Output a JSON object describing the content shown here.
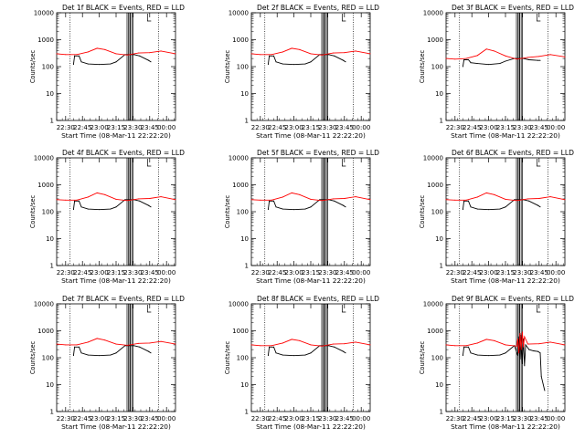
{
  "figure": {
    "type": "hessi-detector-lightcurves",
    "xlabel": "Start Time (08-Mar-11 22:22:20)",
    "ylabel": "Counts/sec",
    "x_tick_labels": [
      "22:30",
      "22:45",
      "23:00",
      "23:15",
      "23:30",
      "23:45",
      "00:00"
    ],
    "y_tick_labels": [
      "1",
      "10",
      "100",
      "1000",
      "10000"
    ],
    "colors": {
      "events": "#000000",
      "lld": "#ff0000",
      "axes": "#000000",
      "background": "#ffffff"
    }
  },
  "chart_data": [
    {
      "type": "line",
      "title": "Det 1f BLACK = Events, RED = LLD",
      "xlabel": "Start Time (08-Mar-11 22:22:20)",
      "ylabel": "Counts/sec",
      "yscale": "log",
      "ylim": [
        1,
        10000
      ],
      "xlim": [
        "22:22",
        "00:08"
      ],
      "series": [
        {
          "name": "Events",
          "color": "#000000",
          "x": [
            "22:37",
            "22:38",
            "22:42",
            "22:44",
            "22:50",
            "23:00",
            "23:10",
            "23:15",
            "23:23",
            "23:29",
            "23:31",
            "23:36",
            "23:44",
            "23:46"
          ],
          "values": [
            120,
            250,
            250,
            150,
            125,
            120,
            125,
            150,
            280,
            280,
            280,
            250,
            170,
            150
          ]
        },
        {
          "name": "LLD",
          "color": "#ff0000",
          "x": [
            "22:22",
            "22:30",
            "22:40",
            "22:50",
            "22:58",
            "23:05",
            "23:15",
            "23:25",
            "23:35",
            "23:45",
            "23:55",
            "00:08"
          ],
          "values": [
            300,
            280,
            280,
            350,
            480,
            430,
            300,
            270,
            320,
            330,
            380,
            300
          ]
        }
      ],
      "markers": [
        {
          "type": "night-boundary",
          "x": [
            "22:34",
            "23:53"
          ]
        },
        {
          "type": "saa-boundary",
          "x": [
            "23:26",
            "23:29"
          ]
        }
      ]
    },
    {
      "type": "line",
      "title": "Det 2f BLACK = Events, RED = LLD",
      "xlabel": "Start Time (08-Mar-11 22:22:20)",
      "ylabel": "Counts/sec",
      "yscale": "log",
      "ylim": [
        1,
        10000
      ],
      "xlim": [
        "22:22",
        "00:08"
      ],
      "series": [
        {
          "name": "Events",
          "color": "#000000",
          "x": [
            "22:37",
            "22:38",
            "22:42",
            "22:44",
            "22:50",
            "23:00",
            "23:10",
            "23:15",
            "23:23",
            "23:29",
            "23:31",
            "23:36",
            "23:44",
            "23:46"
          ],
          "values": [
            120,
            250,
            250,
            150,
            125,
            120,
            125,
            150,
            280,
            280,
            280,
            250,
            170,
            150
          ]
        },
        {
          "name": "LLD",
          "color": "#ff0000",
          "x": [
            "22:22",
            "22:30",
            "22:40",
            "22:50",
            "22:58",
            "23:05",
            "23:15",
            "23:25",
            "23:35",
            "23:45",
            "23:55",
            "00:08"
          ],
          "values": [
            300,
            280,
            280,
            350,
            480,
            430,
            300,
            270,
            320,
            330,
            380,
            300
          ]
        }
      ],
      "markers": [
        {
          "type": "night-boundary",
          "x": [
            "22:34",
            "23:53"
          ]
        },
        {
          "type": "saa-boundary",
          "x": [
            "23:26",
            "23:29"
          ]
        }
      ]
    },
    {
      "type": "line",
      "title": "Det 3f BLACK = Events, RED = LLD",
      "xlabel": "Start Time (08-Mar-11 22:22:20)",
      "ylabel": "Counts/sec",
      "yscale": "log",
      "ylim": [
        1,
        10000
      ],
      "xlim": [
        "22:22",
        "00:08"
      ],
      "series": [
        {
          "name": "Events",
          "color": "#000000",
          "x": [
            "22:37",
            "22:38",
            "22:42",
            "22:44",
            "22:50",
            "23:00",
            "23:10",
            "23:15",
            "23:23",
            "23:29",
            "23:31",
            "23:36",
            "23:44",
            "23:46"
          ],
          "values": [
            100,
            180,
            180,
            140,
            130,
            120,
            130,
            160,
            200,
            200,
            200,
            180,
            170,
            170
          ]
        },
        {
          "name": "LLD",
          "color": "#ff0000",
          "x": [
            "22:22",
            "22:30",
            "22:40",
            "22:50",
            "22:58",
            "23:05",
            "23:15",
            "23:25",
            "23:35",
            "23:45",
            "23:55",
            "00:08"
          ],
          "values": [
            200,
            190,
            200,
            260,
            450,
            380,
            250,
            190,
            220,
            240,
            280,
            230
          ]
        }
      ],
      "markers": [
        {
          "type": "night-boundary",
          "x": [
            "22:34",
            "23:53"
          ]
        },
        {
          "type": "saa-boundary",
          "x": [
            "23:26",
            "23:29"
          ]
        }
      ]
    },
    {
      "type": "line",
      "title": "Det 4f BLACK = Events, RED = LLD",
      "xlabel": "Start Time (08-Mar-11 22:22:20)",
      "ylabel": "Counts/sec",
      "yscale": "log",
      "ylim": [
        1,
        10000
      ],
      "xlim": [
        "22:22",
        "00:08"
      ],
      "series": [
        {
          "name": "Events",
          "color": "#000000",
          "x": [
            "22:37",
            "22:38",
            "22:42",
            "22:44",
            "22:50",
            "23:00",
            "23:10",
            "23:15",
            "23:23",
            "23:29",
            "23:31",
            "23:36",
            "23:44",
            "23:46"
          ],
          "values": [
            120,
            250,
            250,
            150,
            125,
            120,
            125,
            150,
            280,
            280,
            280,
            250,
            170,
            150
          ]
        },
        {
          "name": "LLD",
          "color": "#ff0000",
          "x": [
            "22:22",
            "22:30",
            "22:40",
            "22:50",
            "22:58",
            "23:05",
            "23:15",
            "23:25",
            "23:35",
            "23:45",
            "23:55",
            "00:08"
          ],
          "values": [
            280,
            270,
            270,
            350,
            500,
            430,
            290,
            260,
            300,
            310,
            360,
            280
          ]
        }
      ],
      "markers": [
        {
          "type": "night-boundary",
          "x": [
            "22:34",
            "23:53"
          ]
        },
        {
          "type": "saa-boundary",
          "x": [
            "23:26",
            "23:29"
          ]
        }
      ]
    },
    {
      "type": "line",
      "title": "Det 5f BLACK = Events, RED = LLD",
      "xlabel": "Start Time (08-Mar-11 22:22:20)",
      "ylabel": "Counts/sec",
      "yscale": "log",
      "ylim": [
        1,
        10000
      ],
      "xlim": [
        "22:22",
        "00:08"
      ],
      "series": [
        {
          "name": "Events",
          "color": "#000000",
          "x": [
            "22:37",
            "22:38",
            "22:42",
            "22:44",
            "22:50",
            "23:00",
            "23:10",
            "23:15",
            "23:23",
            "23:29",
            "23:31",
            "23:36",
            "23:44",
            "23:46"
          ],
          "values": [
            120,
            250,
            250,
            150,
            125,
            120,
            125,
            150,
            280,
            280,
            280,
            250,
            170,
            150
          ]
        },
        {
          "name": "LLD",
          "color": "#ff0000",
          "x": [
            "22:22",
            "22:30",
            "22:40",
            "22:50",
            "22:58",
            "23:05",
            "23:15",
            "23:25",
            "23:35",
            "23:45",
            "23:55",
            "00:08"
          ],
          "values": [
            280,
            270,
            270,
            350,
            500,
            430,
            290,
            260,
            300,
            310,
            360,
            280
          ]
        }
      ],
      "markers": [
        {
          "type": "night-boundary",
          "x": [
            "22:34",
            "23:53"
          ]
        },
        {
          "type": "saa-boundary",
          "x": [
            "23:26",
            "23:29"
          ]
        }
      ]
    },
    {
      "type": "line",
      "title": "Det 6f BLACK = Events, RED = LLD",
      "xlabel": "Start Time (08-Mar-11 22:22:20)",
      "ylabel": "Counts/sec",
      "yscale": "log",
      "ylim": [
        1,
        10000
      ],
      "xlim": [
        "22:22",
        "00:08"
      ],
      "series": [
        {
          "name": "Events",
          "color": "#000000",
          "x": [
            "22:37",
            "22:38",
            "22:42",
            "22:44",
            "22:50",
            "23:00",
            "23:10",
            "23:15",
            "23:23",
            "23:29",
            "23:31",
            "23:36",
            "23:44",
            "23:46"
          ],
          "values": [
            120,
            250,
            250,
            150,
            125,
            120,
            125,
            150,
            280,
            280,
            280,
            250,
            170,
            150
          ]
        },
        {
          "name": "LLD",
          "color": "#ff0000",
          "x": [
            "22:22",
            "22:30",
            "22:40",
            "22:50",
            "22:58",
            "23:05",
            "23:15",
            "23:25",
            "23:35",
            "23:45",
            "23:55",
            "00:08"
          ],
          "values": [
            280,
            270,
            270,
            350,
            500,
            430,
            290,
            260,
            300,
            310,
            360,
            280
          ]
        }
      ],
      "markers": [
        {
          "type": "night-boundary",
          "x": [
            "22:34",
            "23:53"
          ]
        },
        {
          "type": "saa-boundary",
          "x": [
            "23:26",
            "23:29"
          ]
        }
      ]
    },
    {
      "type": "line",
      "title": "Det 7f BLACK = Events, RED = LLD",
      "xlabel": "Start Time (08-Mar-11 22:22:20)",
      "ylabel": "Counts/sec",
      "yscale": "log",
      "ylim": [
        1,
        10000
      ],
      "xlim": [
        "22:22",
        "00:08"
      ],
      "series": [
        {
          "name": "Events",
          "color": "#000000",
          "x": [
            "22:37",
            "22:38",
            "22:42",
            "22:44",
            "22:50",
            "23:00",
            "23:10",
            "23:15",
            "23:23",
            "23:29",
            "23:31",
            "23:36",
            "23:44",
            "23:46"
          ],
          "values": [
            120,
            250,
            250,
            150,
            125,
            120,
            125,
            150,
            280,
            280,
            280,
            250,
            170,
            150
          ]
        },
        {
          "name": "LLD",
          "color": "#ff0000",
          "x": [
            "22:22",
            "22:30",
            "22:40",
            "22:50",
            "22:58",
            "23:05",
            "23:15",
            "23:25",
            "23:35",
            "23:45",
            "23:55",
            "00:08"
          ],
          "values": [
            320,
            300,
            300,
            380,
            520,
            450,
            320,
            290,
            340,
            350,
            400,
            320
          ]
        }
      ],
      "markers": [
        {
          "type": "night-boundary",
          "x": [
            "22:34",
            "23:53"
          ]
        },
        {
          "type": "saa-boundary",
          "x": [
            "23:26",
            "23:29"
          ]
        }
      ]
    },
    {
      "type": "line",
      "title": "Det 8f BLACK = Events, RED = LLD",
      "xlabel": "Start Time (08-Mar-11 22:22:20)",
      "ylabel": "Counts/sec",
      "yscale": "log",
      "ylim": [
        1,
        10000
      ],
      "xlim": [
        "22:22",
        "00:08"
      ],
      "series": [
        {
          "name": "Events",
          "color": "#000000",
          "x": [
            "22:37",
            "22:38",
            "22:42",
            "22:44",
            "22:50",
            "23:00",
            "23:10",
            "23:15",
            "23:23",
            "23:29",
            "23:31",
            "23:36",
            "23:44",
            "23:46"
          ],
          "values": [
            120,
            250,
            250,
            150,
            125,
            120,
            125,
            150,
            280,
            280,
            280,
            250,
            170,
            150
          ]
        },
        {
          "name": "LLD",
          "color": "#ff0000",
          "x": [
            "22:22",
            "22:30",
            "22:40",
            "22:50",
            "22:58",
            "23:05",
            "23:15",
            "23:25",
            "23:35",
            "23:45",
            "23:55",
            "00:08"
          ],
          "values": [
            300,
            280,
            280,
            350,
            480,
            430,
            300,
            270,
            320,
            330,
            380,
            300
          ]
        }
      ],
      "markers": [
        {
          "type": "night-boundary",
          "x": [
            "22:34",
            "23:53"
          ]
        },
        {
          "type": "saa-boundary",
          "x": [
            "23:26",
            "23:29"
          ]
        }
      ]
    },
    {
      "type": "line",
      "title": "Det 9f BLACK = Events, RED = LLD",
      "xlabel": "Start Time (08-Mar-11 22:22:20)",
      "ylabel": "Counts/sec",
      "yscale": "log",
      "ylim": [
        1,
        10000
      ],
      "xlim": [
        "22:22",
        "00:08"
      ],
      "series": [
        {
          "name": "Events",
          "color": "#000000",
          "x": [
            "22:37",
            "22:38",
            "22:42",
            "22:44",
            "22:50",
            "23:00",
            "23:10",
            "23:15",
            "23:23",
            "23:26",
            "23:27",
            "23:28",
            "23:29",
            "23:30",
            "23:31",
            "23:32",
            "23:33",
            "23:36",
            "23:40",
            "23:44",
            "23:46",
            "23:47",
            "23:50"
          ],
          "values": [
            120,
            250,
            250,
            150,
            125,
            120,
            125,
            150,
            280,
            120,
            600,
            90,
            700,
            60,
            500,
            50,
            300,
            200,
            180,
            170,
            150,
            20,
            6
          ]
        },
        {
          "name": "LLD",
          "color": "#ff0000",
          "x": [
            "22:22",
            "22:30",
            "22:40",
            "22:50",
            "22:58",
            "23:05",
            "23:15",
            "23:25",
            "23:26",
            "23:27",
            "23:28",
            "23:29",
            "23:30",
            "23:31",
            "23:32",
            "23:35",
            "23:45",
            "23:55",
            "00:08"
          ],
          "values": [
            300,
            280,
            280,
            350,
            480,
            430,
            300,
            270,
            500,
            150,
            800,
            200,
            900,
            250,
            600,
            320,
            330,
            380,
            300
          ]
        }
      ],
      "markers": [
        {
          "type": "night-boundary",
          "x": [
            "22:34",
            "23:53"
          ]
        },
        {
          "type": "saa-boundary",
          "x": [
            "23:26",
            "23:29"
          ]
        }
      ]
    }
  ]
}
